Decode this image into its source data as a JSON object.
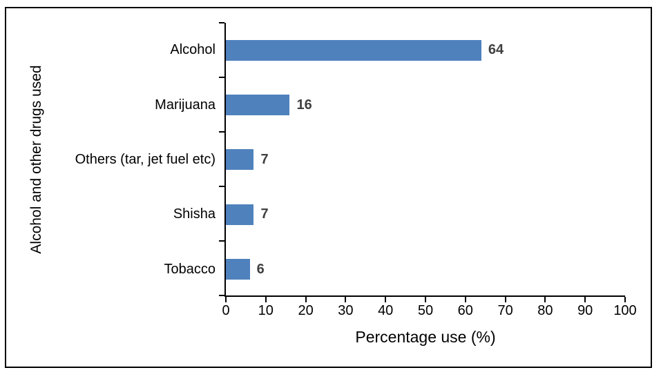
{
  "chart_data": {
    "type": "bar",
    "orientation": "horizontal",
    "title": "",
    "categories": [
      "Alcohol",
      "Marijuana",
      "Others (tar, jet fuel etc)",
      "Shisha",
      "Tobacco"
    ],
    "values": [
      64,
      16,
      7,
      7,
      6
    ],
    "value_labels": [
      "64",
      "16",
      "7",
      "7",
      "6"
    ],
    "xlabel": "Percentage use (%)",
    "ylabel": "Alcohol and other drugs used",
    "xlim": [
      0,
      100
    ],
    "xticks": [
      0,
      10,
      20,
      30,
      40,
      50,
      60,
      70,
      80,
      90,
      100
    ],
    "grid": false,
    "legend": "none",
    "bar_color": "#4F81BD",
    "value_label_color": "#404040",
    "axis_color": "#000000",
    "frame_border_color": "#000000"
  }
}
